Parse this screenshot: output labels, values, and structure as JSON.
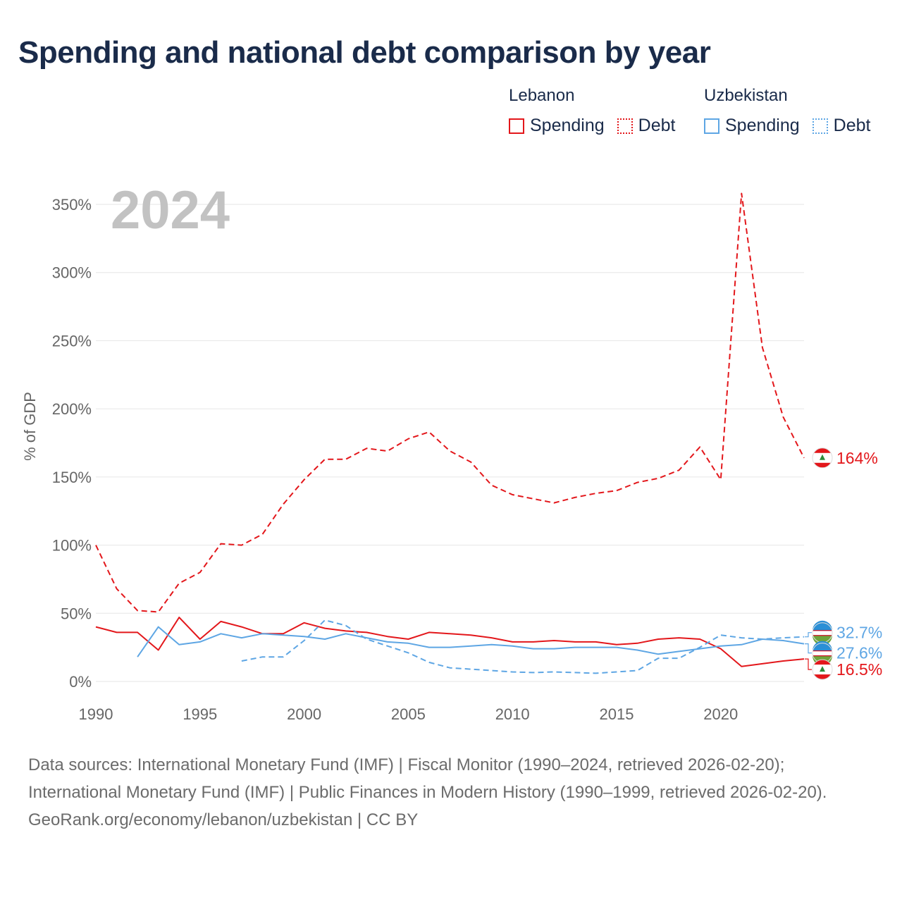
{
  "title": "Spending and national debt comparison by year",
  "legend": {
    "groups": [
      {
        "country": "Lebanon",
        "items": [
          {
            "label": "Spending",
            "style": "solid",
            "color": "#e3171b"
          },
          {
            "label": "Debt",
            "style": "dotted",
            "color": "#e3171b"
          }
        ]
      },
      {
        "country": "Uzbekistan",
        "items": [
          {
            "label": "Spending",
            "style": "solid",
            "color": "#5ea6e4"
          },
          {
            "label": "Debt",
            "style": "dotted",
            "color": "#5ea6e4"
          }
        ]
      }
    ]
  },
  "colors": {
    "lebanon": "#e3171b",
    "uzbekistan": "#5ea6e4",
    "grid": "#e6e6e6",
    "axis_text": "#666666",
    "year_watermark": "#c2c2c2"
  },
  "chart_data": {
    "type": "line",
    "year_label": "2024",
    "ylabel": "% of GDP",
    "xlim": [
      1990,
      2024
    ],
    "ylim": [
      0,
      350
    ],
    "x_ticks": [
      1990,
      1995,
      2000,
      2005,
      2010,
      2015,
      2020
    ],
    "y_ticks": [
      0,
      50,
      100,
      150,
      200,
      250,
      300,
      350
    ],
    "y_tick_labels": [
      "0%",
      "50%",
      "100%",
      "150%",
      "200%",
      "250%",
      "300%",
      "350%"
    ],
    "series": [
      {
        "name": "Lebanon Debt",
        "country": "Lebanon",
        "kind": "Debt",
        "style": "dashed",
        "color": "#e3171b",
        "x": [
          1990,
          1991,
          1992,
          1993,
          1994,
          1995,
          1996,
          1997,
          1998,
          1999,
          2000,
          2001,
          2002,
          2003,
          2004,
          2005,
          2006,
          2007,
          2008,
          2009,
          2010,
          2011,
          2012,
          2013,
          2014,
          2015,
          2016,
          2017,
          2018,
          2019,
          2020,
          2021,
          2022,
          2023,
          2024
        ],
        "values": [
          100,
          68,
          52,
          51,
          72,
          80,
          101,
          100,
          108,
          130,
          148,
          163,
          163,
          171,
          169,
          178,
          183,
          169,
          161,
          144,
          137,
          134,
          131,
          135,
          138,
          140,
          146,
          149,
          155,
          172,
          148,
          358,
          245,
          194,
          164
        ],
        "end_label": "164%"
      },
      {
        "name": "Lebanon Spending",
        "country": "Lebanon",
        "kind": "Spending",
        "style": "solid",
        "color": "#e3171b",
        "x": [
          1990,
          1991,
          1992,
          1993,
          1994,
          1995,
          1996,
          1997,
          1998,
          1999,
          2000,
          2001,
          2002,
          2003,
          2004,
          2005,
          2006,
          2007,
          2008,
          2009,
          2010,
          2011,
          2012,
          2013,
          2014,
          2015,
          2016,
          2017,
          2018,
          2019,
          2020,
          2021,
          2022,
          2023,
          2024
        ],
        "values": [
          40,
          36,
          36,
          23,
          47,
          31,
          44,
          40,
          35,
          35,
          43,
          39,
          37,
          36,
          33,
          31,
          36,
          35,
          34,
          32,
          29,
          29,
          30,
          29,
          29,
          27,
          28,
          31,
          32,
          31,
          24,
          11,
          13,
          15,
          16.5
        ],
        "end_label": "16.5%"
      },
      {
        "name": "Uzbekistan Spending",
        "country": "Uzbekistan",
        "kind": "Spending",
        "style": "solid",
        "color": "#5ea6e4",
        "x": [
          1992,
          1993,
          1994,
          1995,
          1996,
          1997,
          1998,
          1999,
          2000,
          2001,
          2002,
          2003,
          2004,
          2005,
          2006,
          2007,
          2008,
          2009,
          2010,
          2011,
          2012,
          2013,
          2014,
          2015,
          2016,
          2017,
          2018,
          2019,
          2020,
          2021,
          2022,
          2023,
          2024
        ],
        "values": [
          18,
          40,
          27,
          29,
          35,
          32,
          35,
          34,
          33,
          31,
          35,
          32,
          29,
          28,
          25,
          25,
          26,
          27,
          26,
          24,
          24,
          25,
          25,
          25,
          23,
          20,
          22,
          24,
          26,
          27,
          31,
          30,
          27.6
        ],
        "end_label": "27.6%"
      },
      {
        "name": "Uzbekistan Debt",
        "country": "Uzbekistan",
        "kind": "Debt",
        "style": "dashed",
        "color": "#5ea6e4",
        "x": [
          1997,
          1998,
          1999,
          2000,
          2001,
          2002,
          2003,
          2004,
          2005,
          2006,
          2007,
          2008,
          2009,
          2010,
          2011,
          2012,
          2013,
          2014,
          2015,
          2016,
          2017,
          2018,
          2019,
          2020,
          2021,
          2022,
          2023,
          2024
        ],
        "values": [
          15,
          18,
          18,
          30,
          45,
          41,
          31,
          26,
          21,
          14,
          10,
          9,
          8,
          7,
          6.5,
          7,
          6.5,
          6,
          7,
          8,
          17,
          17,
          25,
          34,
          32,
          31,
          32,
          32.7
        ],
        "end_label": "32.7%"
      }
    ]
  },
  "footer": {
    "sources": "Data sources: International Monetary Fund (IMF) | Fiscal Monitor (1990–2024, retrieved 2026-02-20); International Monetary Fund (IMF) | Public Finances in Modern History (1990–1999, retrieved 2026-02-20).",
    "credit": "GeoRank.org/economy/lebanon/uzbekistan | CC BY"
  }
}
